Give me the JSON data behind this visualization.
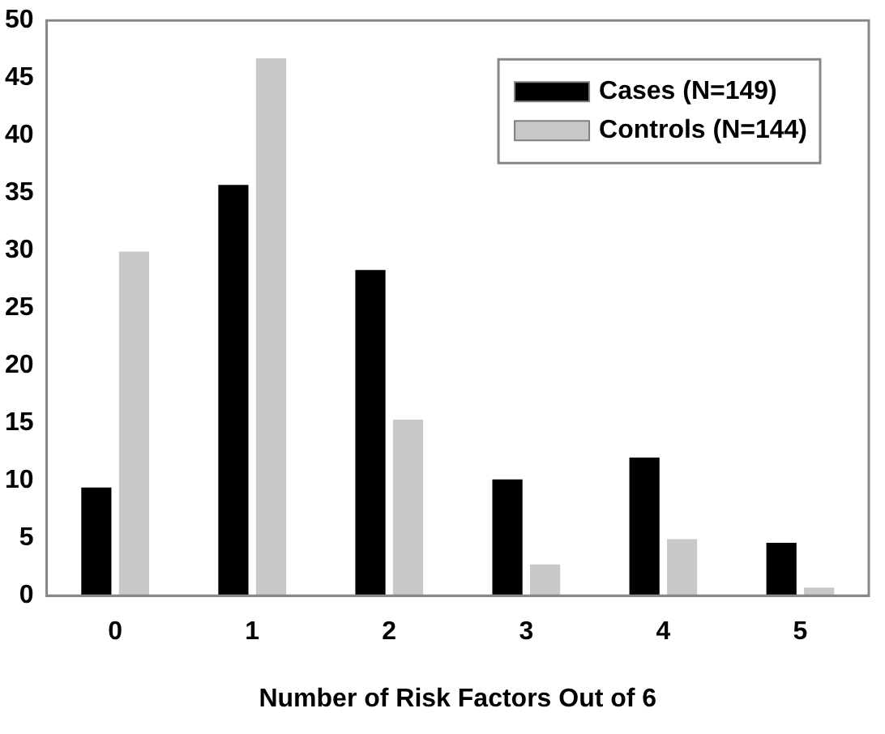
{
  "chart_data": {
    "type": "bar",
    "xlabel": "Number of Risk Factors Out of 6",
    "categories": [
      "0",
      "1",
      "2",
      "3",
      "4",
      "5"
    ],
    "series": [
      {
        "name": "Cases (N=149)",
        "color": "#000000",
        "values": [
          9.4,
          35.7,
          28.3,
          10.1,
          12.0,
          4.6
        ]
      },
      {
        "name": "Controls (N=144)",
        "color": "#c8c8c8",
        "values": [
          29.9,
          46.7,
          15.3,
          2.7,
          4.9,
          0.7
        ]
      }
    ],
    "ylim": [
      0,
      50
    ],
    "yticks": [
      0,
      5,
      10,
      15,
      20,
      25,
      30,
      35,
      40,
      45,
      50
    ],
    "grid": false,
    "legend": "top right"
  }
}
